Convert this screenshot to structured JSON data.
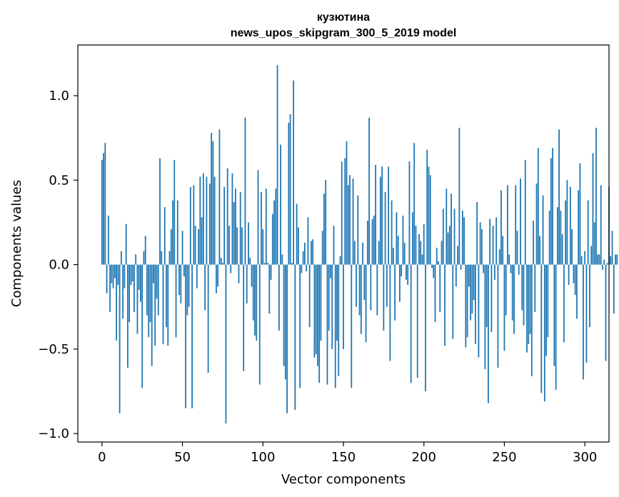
{
  "chart_data": {
    "type": "bar",
    "title": "кузютина",
    "subtitle": "news_upos_skipgram_300_5_2019 model",
    "xlabel": "Vector components",
    "ylabel": "Components values",
    "xlim": [
      -15,
      315
    ],
    "ylim": [
      -1.05,
      1.3
    ],
    "x_ticks": [
      0,
      50,
      100,
      150,
      200,
      250,
      300
    ],
    "y_ticks": [
      -1.0,
      -0.5,
      0.0,
      0.5,
      1.0
    ],
    "x_tick_labels": [
      "0",
      "50",
      "100",
      "150",
      "200",
      "250",
      "300"
    ],
    "y_tick_labels": [
      "−1.0",
      "−0.5",
      "0.0",
      "0.5",
      "1.0"
    ],
    "bar_color": "#1f77b4",
    "grid": false,
    "values": [
      0.62,
      0.66,
      0.72,
      -0.17,
      0.29,
      -0.28,
      -0.11,
      -0.14,
      -0.08,
      -0.45,
      -0.12,
      -0.88,
      0.08,
      -0.32,
      -0.14,
      0.24,
      -0.61,
      -0.34,
      -0.12,
      -0.1,
      -0.28,
      0.06,
      -0.41,
      -0.15,
      -0.22,
      -0.73,
      0.08,
      0.17,
      -0.3,
      -0.43,
      -0.34,
      -0.6,
      -0.11,
      -0.48,
      -0.2,
      -0.3,
      0.63,
      0.08,
      -0.47,
      0.34,
      -0.37,
      -0.48,
      0.08,
      0.21,
      0.38,
      0.62,
      -0.43,
      0.38,
      -0.18,
      -0.23,
      0.2,
      -0.07,
      -0.85,
      -0.3,
      -0.25,
      0.46,
      -0.85,
      0.47,
      0.23,
      -0.14,
      0.21,
      0.52,
      0.28,
      0.54,
      -0.27,
      0.52,
      -0.64,
      0.48,
      0.78,
      0.73,
      0.52,
      -0.17,
      -0.13,
      0.8,
      0.04,
      0.01,
      0.46,
      -0.94,
      0.57,
      0.23,
      -0.05,
      0.54,
      0.37,
      0.45,
      0.22,
      -0.11,
      0.43,
      0.22,
      -0.63,
      0.87,
      -0.23,
      0.25,
      0.04,
      -0.13,
      -0.33,
      -0.42,
      -0.45,
      0.56,
      -0.71,
      0.43,
      0.21,
      0.01,
      0.45,
      0.01,
      -0.29,
      -0.09,
      0.3,
      0.38,
      0.45,
      1.18,
      -0.39,
      0.71,
      0.06,
      -0.6,
      -0.68,
      -0.88,
      0.84,
      0.89,
      0.01,
      1.09,
      -0.86,
      0.36,
      0.22,
      -0.73,
      -0.05,
      0.08,
      0.13,
      -0.04,
      0.28,
      -0.37,
      0.14,
      0.15,
      -0.55,
      -0.53,
      -0.6,
      -0.7,
      -0.45,
      0.2,
      0.42,
      0.5,
      -0.71,
      -0.39,
      -0.08,
      -0.5,
      0.23,
      -0.73,
      -0.45,
      -0.66,
      0.05,
      0.61,
      -0.5,
      0.63,
      0.73,
      0.47,
      0.53,
      -0.73,
      0.51,
      0.14,
      -0.25,
      0.41,
      -0.3,
      -0.41,
      0.13,
      -0.21,
      -0.46,
      0.26,
      0.87,
      -0.27,
      0.27,
      0.29,
      0.59,
      -0.3,
      0.14,
      0.52,
      0.58,
      -0.39,
      0.43,
      -0.25,
      0.58,
      -0.57,
      0.38,
      0.1,
      -0.33,
      0.31,
      0.17,
      -0.22,
      -0.07,
      0.29,
      0.13,
      -0.09,
      -0.12,
      0.61,
      -0.7,
      0.31,
      0.72,
      0.23,
      -0.67,
      0.18,
      0.14,
      0.06,
      0.24,
      -0.75,
      0.68,
      0.58,
      0.53,
      -0.02,
      -0.08,
      -0.34,
      0.1,
      0.02,
      -0.28,
      0.14,
      0.33,
      -0.48,
      0.45,
      0.19,
      0.23,
      0.42,
      -0.44,
      0.33,
      -0.13,
      0.11,
      0.81,
      -0.03,
      0.32,
      0.28,
      -0.49,
      -0.43,
      -0.13,
      -0.33,
      -0.29,
      -0.21,
      -0.47,
      0.37,
      -0.55,
      0.25,
      0.21,
      -0.05,
      -0.62,
      -0.37,
      -0.82,
      0.27,
      -0.4,
      0.23,
      -0.09,
      0.28,
      -0.61,
      0.09,
      0.44,
      0.17,
      -0.51,
      -0.3,
      0.47,
      0.06,
      -0.05,
      -0.33,
      -0.41,
      0.47,
      0.2,
      -0.06,
      0.51,
      -0.27,
      -0.36,
      0.62,
      -0.52,
      -0.47,
      -0.41,
      -0.66,
      0.26,
      -0.28,
      0.48,
      0.69,
      0.17,
      -0.76,
      0.41,
      -0.81,
      -0.54,
      -0.43,
      0.32,
      0.63,
      0.69,
      -0.6,
      -0.74,
      0.34,
      0.8,
      0.32,
      0.18,
      -0.46,
      0.38,
      0.5,
      -0.12,
      0.46,
      0.21,
      -0.11,
      -0.18,
      -0.32,
      0.44,
      0.6,
      0.05,
      -0.68,
      0.08,
      -0.58,
      0.38,
      -0.37,
      0.11,
      0.66,
      0.25,
      0.81,
      0.06,
      0.06,
      0.47,
      -0.03,
      0.03,
      -0.57,
      0.01,
      0.46,
      0.05,
      0.2,
      -0.29,
      0.06,
      0.06
    ]
  }
}
